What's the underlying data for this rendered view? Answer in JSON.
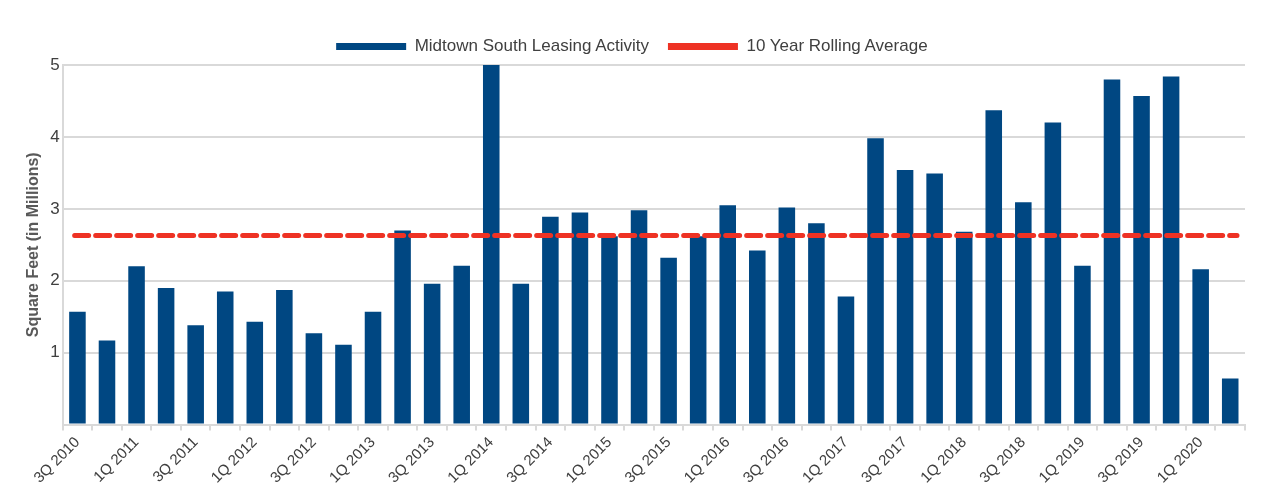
{
  "chart_data": {
    "type": "bar",
    "ylabel": "Square Feet (in Millions)",
    "categories": [
      "3Q 2010",
      null,
      "1Q 2011",
      null,
      "3Q 2011",
      null,
      "1Q 2012",
      null,
      "3Q 2012",
      null,
      "1Q 2013",
      null,
      "3Q 2013",
      null,
      "1Q 2014",
      null,
      "3Q 2014",
      null,
      "1Q 2015",
      null,
      "3Q 2015",
      null,
      "1Q 2016",
      null,
      "3Q 2016",
      null,
      "1Q 2017",
      null,
      "3Q 2017",
      null,
      "1Q 2018",
      null,
      "3Q 2018",
      null,
      "1Q 2019",
      null,
      "3Q 2019",
      null,
      "1Q 2020",
      null
    ],
    "series": [
      {
        "name": "Midtown South Leasing Activity",
        "color": "#004782",
        "values": [
          1.57,
          1.17,
          2.2,
          1.9,
          1.38,
          1.85,
          1.43,
          1.87,
          1.27,
          1.11,
          1.57,
          2.7,
          1.96,
          2.21,
          5.0,
          1.96,
          2.89,
          2.95,
          2.62,
          2.98,
          2.32,
          2.62,
          3.05,
          2.42,
          3.02,
          2.8,
          1.78,
          3.98,
          3.54,
          3.49,
          2.68,
          4.37,
          3.09,
          4.2,
          2.21,
          4.8,
          4.57,
          4.84,
          2.16,
          0.64
        ]
      }
    ],
    "ref_lines": [
      {
        "axis": "y",
        "value": 2.63,
        "label": "10 Year Rolling Average",
        "color": "#ee3224",
        "line_style": "dashed"
      }
    ],
    "ylim": [
      0,
      5
    ],
    "yticks": [
      {
        "value": 0,
        "label": null
      },
      1,
      2,
      3,
      4,
      5
    ],
    "grid": "y",
    "legend": "top"
  }
}
